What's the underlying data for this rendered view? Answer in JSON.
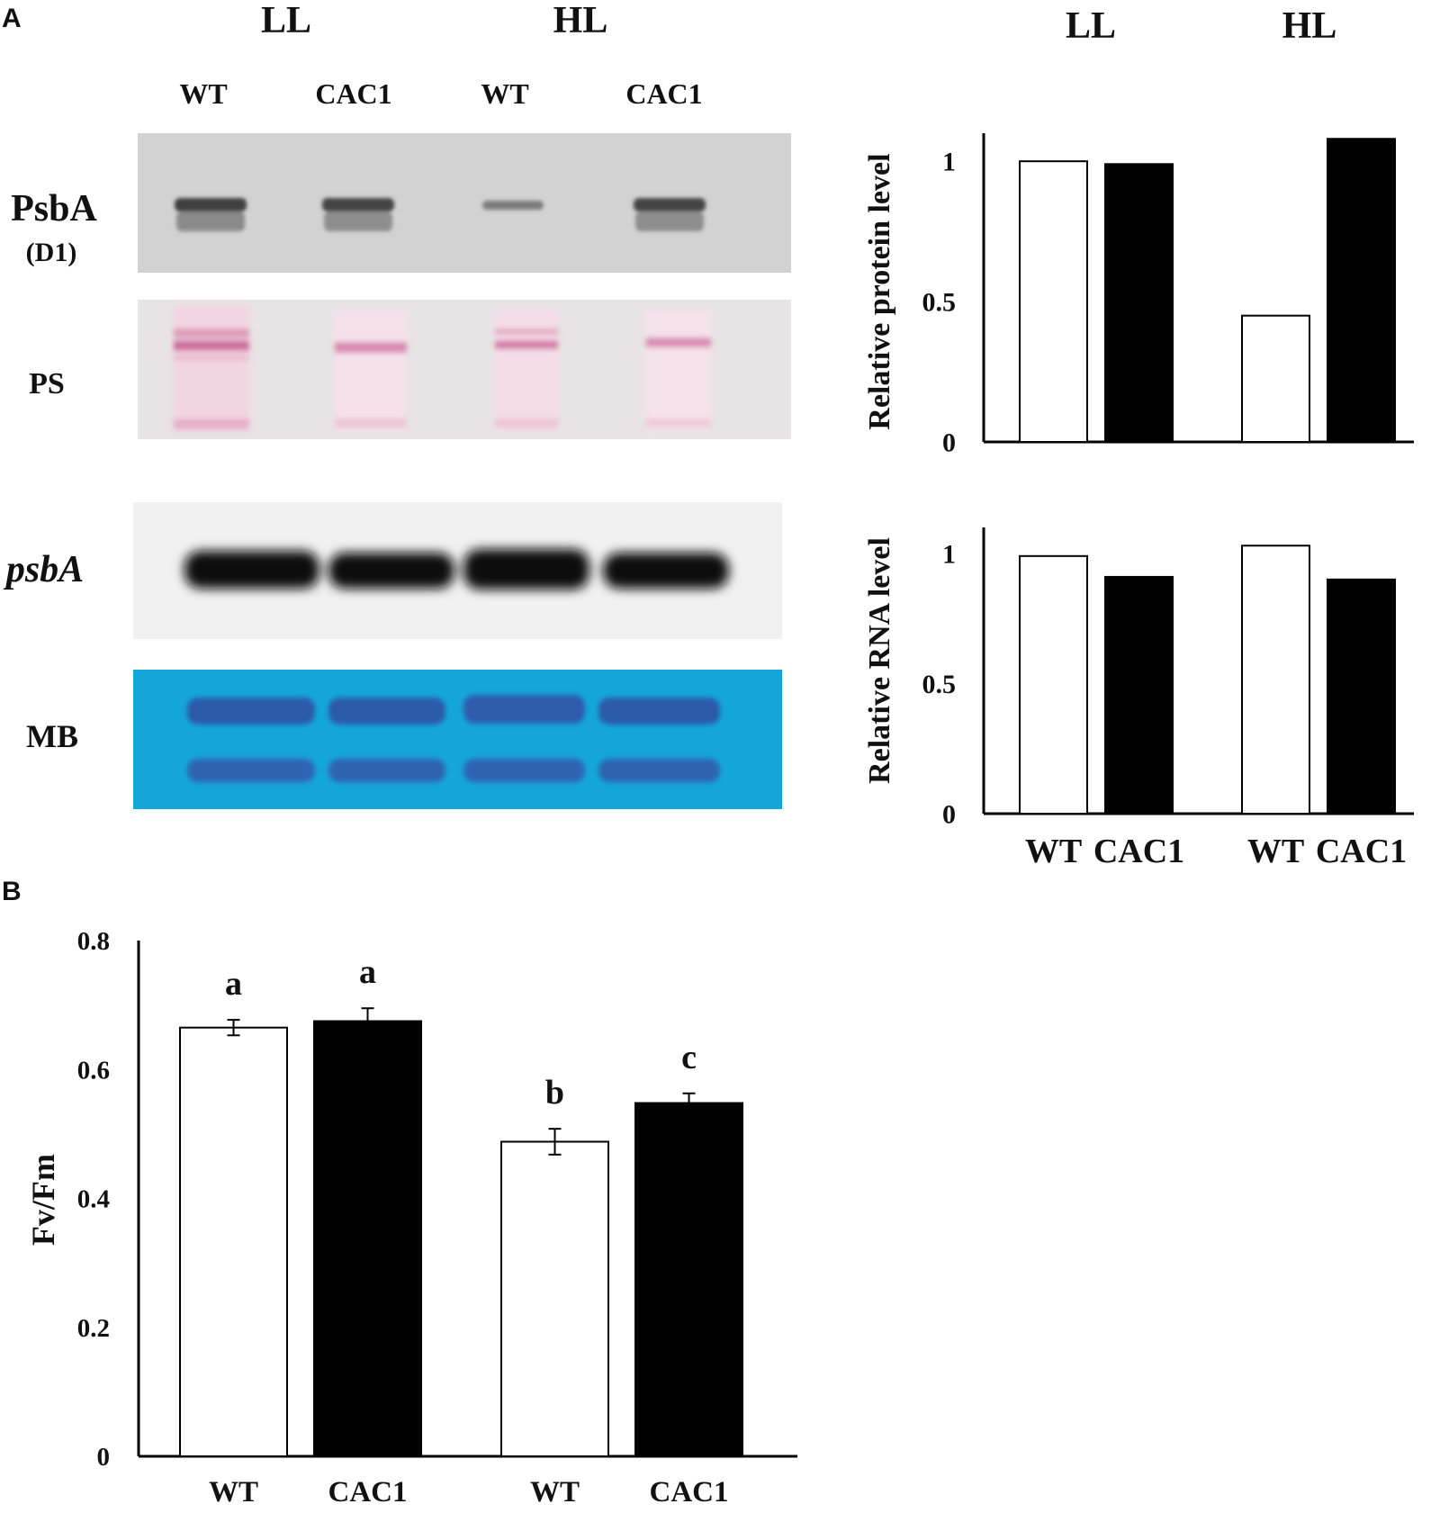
{
  "panel_a_label": "A",
  "panel_b_label": "B",
  "blot": {
    "group_labels": [
      "LL",
      "HL"
    ],
    "lane_labels": [
      "WT",
      "CAC1",
      "WT",
      "CAC1"
    ],
    "row_labels": {
      "psba_protein": "PsbA",
      "psba_protein_sub": "(D1)",
      "ps": "PS",
      "psba_rna": "psbA",
      "mb": "MB"
    }
  },
  "chart_data": [
    {
      "type": "bar",
      "group_labels": [
        "LL",
        "HL"
      ],
      "categories": [
        "WT",
        "CAC1",
        "WT",
        "CAC1"
      ],
      "values": [
        1.0,
        0.99,
        0.45,
        1.08
      ],
      "bar_colors": [
        "#ffffff",
        "#000000",
        "#ffffff",
        "#000000"
      ],
      "ylabel": "Relative protein level",
      "ylim": [
        0,
        1.1
      ],
      "yticks": [
        "0",
        "0.5",
        "1"
      ],
      "xlabel": ""
    },
    {
      "type": "bar",
      "categories": [
        "WT",
        "CAC1",
        "WT",
        "CAC1"
      ],
      "values": [
        0.99,
        0.91,
        1.03,
        0.9
      ],
      "bar_colors": [
        "#ffffff",
        "#000000",
        "#ffffff",
        "#000000"
      ],
      "ylabel": "Relative RNA level",
      "ylim": [
        0,
        1.1
      ],
      "yticks": [
        "0",
        "0.5",
        "1"
      ],
      "x_tick_labels": [
        "WT",
        "CAC1",
        "WT",
        "CAC1"
      ]
    },
    {
      "type": "bar",
      "categories": [
        "WT",
        "CAC1",
        "WT",
        "CAC1"
      ],
      "values": [
        0.665,
        0.675,
        0.488,
        0.548
      ],
      "errors": [
        0.012,
        0.02,
        0.02,
        0.015
      ],
      "significance": [
        "a",
        "a",
        "b",
        "c"
      ],
      "bar_colors": [
        "#ffffff",
        "#000000",
        "#ffffff",
        "#000000"
      ],
      "ylabel": "Fv/Fm",
      "ylim": [
        0,
        0.8
      ],
      "yticks": [
        "0",
        "0.2",
        "0.4",
        "0.6",
        "0.8"
      ],
      "x_tick_labels": [
        "WT",
        "CAC1",
        "WT",
        "CAC1"
      ]
    }
  ]
}
